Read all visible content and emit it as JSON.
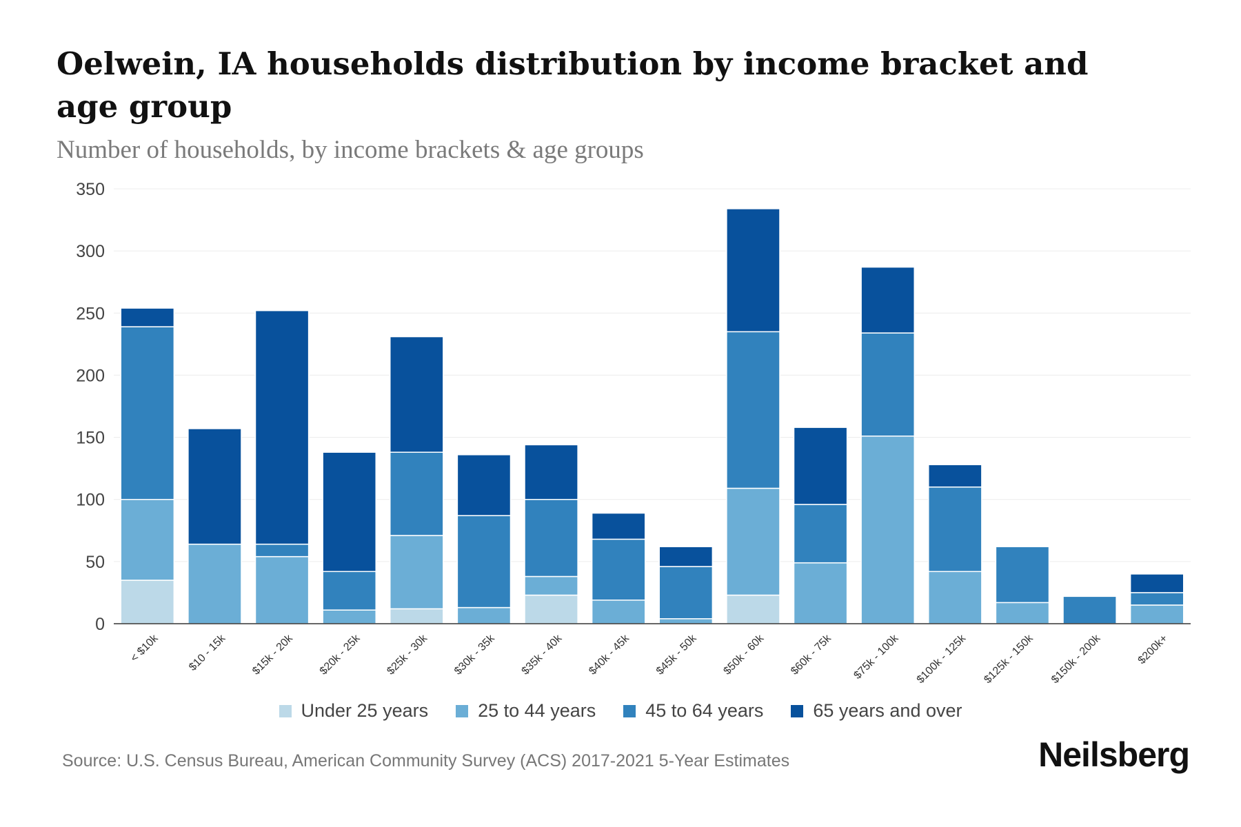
{
  "chart_data": {
    "type": "bar",
    "stacked": true,
    "title": "Oelwein, IA households distribution by income bracket and age group",
    "subtitle": "Number of households, by income brackets & age groups",
    "xlabel": "",
    "ylabel": "",
    "ylim": [
      0,
      350
    ],
    "yticks": [
      0,
      50,
      100,
      150,
      200,
      250,
      300,
      350
    ],
    "grid": true,
    "legend_position": "bottom",
    "categories": [
      "< $10k",
      "$10 - 15k",
      "$15k - 20k",
      "$20k - 25k",
      "$25k - 30k",
      "$30k - 35k",
      "$35k - 40k",
      "$40k - 45k",
      "$45k - 50k",
      "$50k - 60k",
      "$60k - 75k",
      "$75k - 100k",
      "$100k - 125k",
      "$125k - 150k",
      "$150k - 200k",
      "$200k+"
    ],
    "series": [
      {
        "name": "Under 25 years",
        "color": "#bcd9e8",
        "values": [
          35,
          0,
          0,
          0,
          12,
          0,
          23,
          0,
          0,
          23,
          0,
          0,
          0,
          0,
          0,
          0
        ]
      },
      {
        "name": "25 to 44 years",
        "color": "#6baed6",
        "values": [
          65,
          64,
          54,
          11,
          59,
          13,
          15,
          19,
          4,
          86,
          49,
          151,
          42,
          17,
          0,
          15
        ]
      },
      {
        "name": "45 to 64 years",
        "color": "#3182bd",
        "values": [
          139,
          0,
          10,
          31,
          67,
          74,
          62,
          49,
          42,
          126,
          47,
          83,
          68,
          45,
          22,
          10
        ]
      },
      {
        "name": "65 years and over",
        "color": "#08519c",
        "values": [
          15,
          93,
          188,
          96,
          93,
          49,
          44,
          21,
          16,
          99,
          62,
          53,
          18,
          0,
          0,
          15
        ]
      }
    ]
  },
  "legend": [
    {
      "label": "Under 25 years",
      "color": "#bcd9e8"
    },
    {
      "label": "25 to 44 years",
      "color": "#6baed6"
    },
    {
      "label": "45 to 64 years",
      "color": "#3182bd"
    },
    {
      "label": "65 years and over",
      "color": "#08519c"
    }
  ],
  "footer": {
    "source": "Source: U.S. Census Bureau, American Community Survey (ACS) 2017-2021 5-Year Estimates",
    "brand": "Neilsberg"
  }
}
